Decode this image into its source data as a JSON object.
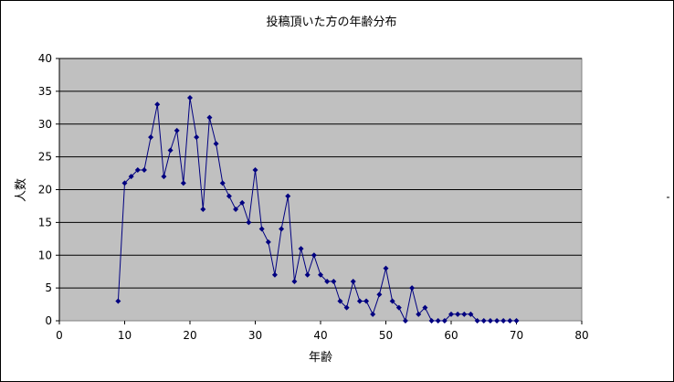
{
  "chart_data": {
    "type": "line",
    "title": "投稿頂いた方の年齢分布",
    "xlabel": "年齢",
    "ylabel": "人数",
    "xlim": [
      0,
      80
    ],
    "ylim": [
      0,
      40
    ],
    "x_ticks": [
      "0",
      "10",
      "20",
      "30",
      "40",
      "50",
      "60",
      "70",
      "80"
    ],
    "y_ticks": [
      "0",
      "5",
      "10",
      "15",
      "20",
      "25",
      "30",
      "35",
      "40"
    ],
    "grid": "horizontal",
    "legend": "none",
    "colors": {
      "plot_background": "#c0c0c0",
      "series": "#000080",
      "gridline": "#000000"
    },
    "series": [
      {
        "x": [
          9,
          10,
          11,
          12,
          13,
          14,
          15,
          16,
          17,
          18,
          19,
          20,
          21,
          22,
          23,
          24,
          25,
          26,
          27,
          28,
          29,
          30,
          31,
          32,
          33,
          34,
          35,
          36,
          37,
          38,
          39,
          40,
          41,
          42,
          43,
          44,
          45,
          46,
          47,
          48,
          49,
          50,
          51,
          52,
          53,
          54,
          55,
          56,
          57,
          58,
          59,
          60,
          61,
          62,
          63,
          64,
          65,
          66,
          67,
          68,
          69,
          70
        ],
        "y": [
          3,
          21,
          22,
          23,
          23,
          28,
          33,
          22,
          26,
          29,
          21,
          34,
          28,
          17,
          31,
          27,
          21,
          19,
          17,
          18,
          15,
          23,
          14,
          12,
          7,
          14,
          19,
          6,
          11,
          7,
          10,
          7,
          6,
          6,
          3,
          2,
          6,
          3,
          3,
          1,
          4,
          8,
          3,
          2,
          0,
          5,
          1,
          2,
          0,
          0,
          0,
          1,
          1,
          1,
          1,
          0,
          0,
          0,
          0,
          0,
          0,
          0
        ]
      }
    ]
  }
}
